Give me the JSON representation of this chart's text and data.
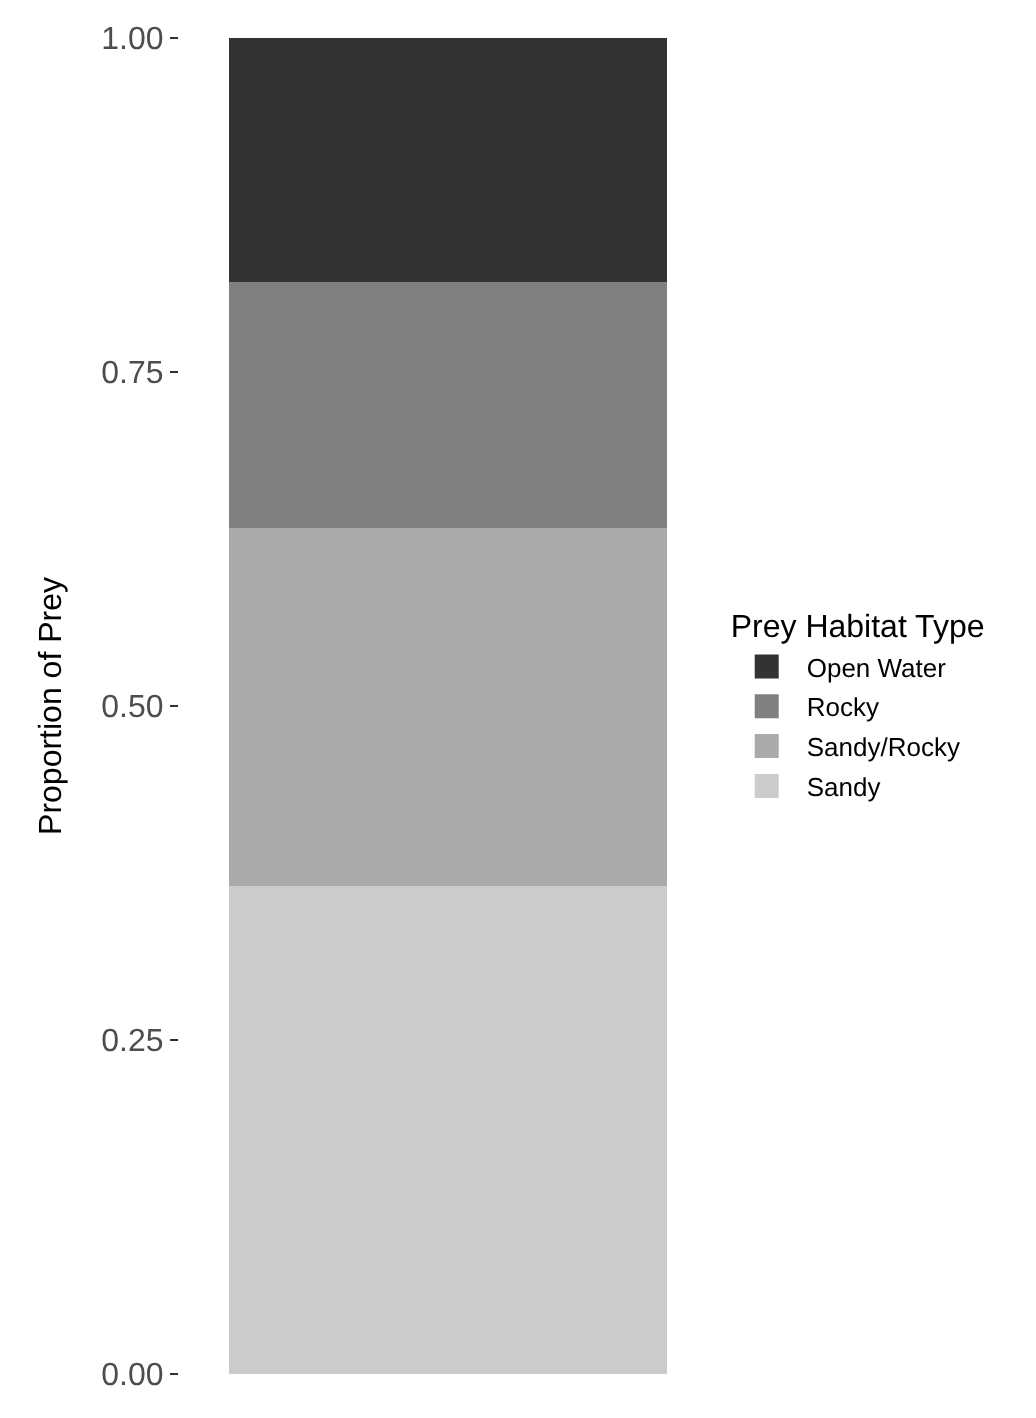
{
  "chart_data": {
    "type": "bar",
    "stacked": true,
    "ylabel": "Proportion of Prey",
    "legend_title": "Prey Habitat Type",
    "categories": [
      null
    ],
    "series": [
      {
        "name": "Sandy",
        "color": "#cccccc",
        "values": [
          0.365
        ]
      },
      {
        "name": "Sandy/Rocky",
        "color": "#aaaaaa",
        "values": [
          0.268
        ]
      },
      {
        "name": "Rocky",
        "color": "#808080",
        "values": [
          0.184
        ]
      },
      {
        "name": "Open Water",
        "color": "#333333",
        "values": [
          0.183
        ]
      }
    ],
    "ylim": [
      0,
      1
    ],
    "yticks": [
      {
        "value": 0,
        "label": "0.00"
      },
      {
        "value": 0.25,
        "label": "0.25"
      },
      {
        "value": 0.5,
        "label": "0.50"
      },
      {
        "value": 0.75,
        "label": "0.75"
      },
      {
        "value": 1,
        "label": "1.00"
      }
    ],
    "tick_labels": "y",
    "legend": "right"
  }
}
